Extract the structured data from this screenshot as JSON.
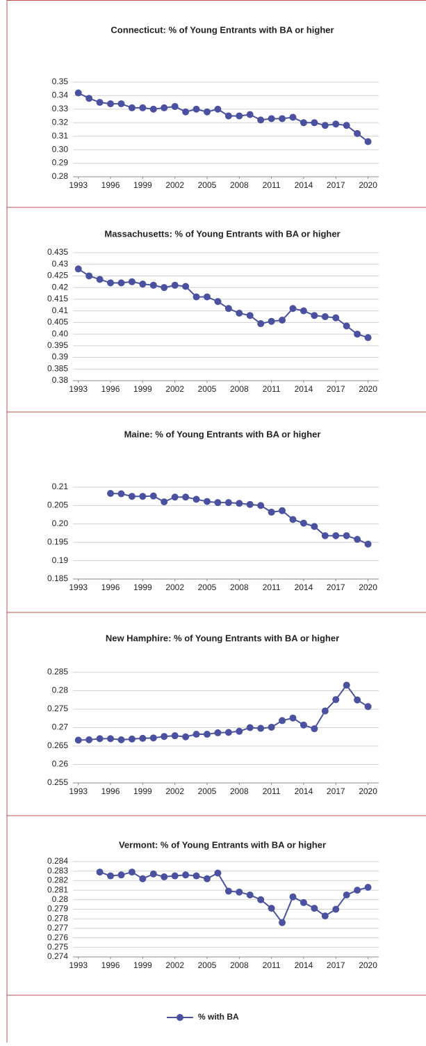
{
  "chart_data": [
    {
      "type": "line",
      "title": "Connecticut: % of Young Entrants with BA or higher",
      "color": "#4a52a0",
      "x": [
        1993,
        1994,
        1995,
        1996,
        1997,
        1998,
        1999,
        2000,
        2001,
        2002,
        2003,
        2004,
        2005,
        2006,
        2007,
        2008,
        2009,
        2010,
        2011,
        2012,
        2013,
        2014,
        2015,
        2016,
        2017,
        2018,
        2019,
        2020
      ],
      "values": [
        0.342,
        0.338,
        0.335,
        0.334,
        0.334,
        0.331,
        0.331,
        0.33,
        0.331,
        0.332,
        0.328,
        0.33,
        0.328,
        0.33,
        0.325,
        0.325,
        0.326,
        0.322,
        0.323,
        0.323,
        0.324,
        0.32,
        0.32,
        0.318,
        0.319,
        0.318,
        0.312,
        0.306
      ],
      "xlim": [
        1992.5,
        2021
      ],
      "xticks": [
        1993,
        1996,
        1999,
        2002,
        2005,
        2008,
        2011,
        2014,
        2017,
        2020
      ],
      "ylim": [
        0.28,
        0.35
      ],
      "yticks": [
        0.28,
        0.29,
        {
          "value": 0.3,
          "label": "0.30"
        },
        0.31,
        0.32,
        0.33,
        0.34,
        0.35
      ],
      "grid": true
    },
    {
      "type": "line",
      "title": "Massachusetts: % of Young Entrants with BA or higher",
      "color": "#4a52a0",
      "x": [
        1993,
        1994,
        1995,
        1996,
        1997,
        1998,
        1999,
        2000,
        2001,
        2002,
        2003,
        2004,
        2005,
        2006,
        2007,
        2008,
        2009,
        2010,
        2011,
        2012,
        2013,
        2014,
        2015,
        2016,
        2017,
        2018,
        2019,
        2020
      ],
      "values": [
        0.428,
        0.425,
        0.4235,
        0.422,
        0.422,
        0.4225,
        0.4215,
        0.421,
        0.42,
        0.421,
        0.4205,
        0.416,
        0.416,
        0.414,
        0.411,
        0.409,
        0.408,
        0.4045,
        0.4055,
        0.406,
        0.411,
        0.41,
        0.408,
        0.4075,
        0.407,
        0.4035,
        0.4,
        0.3985
      ],
      "xlim": [
        1992.5,
        2021
      ],
      "xticks": [
        1993,
        1996,
        1999,
        2002,
        2005,
        2008,
        2011,
        2014,
        2017,
        2020
      ],
      "ylim": [
        0.38,
        0.435
      ],
      "yticks": [
        0.38,
        0.385,
        0.39,
        0.395,
        {
          "value": 0.4,
          "label": "0.40"
        },
        0.405,
        0.41,
        0.415,
        0.42,
        0.425,
        0.43,
        0.435
      ],
      "grid": true
    },
    {
      "type": "line",
      "title": "Maine: % of Young Entrants with BA or higher",
      "color": "#4a52a0",
      "x": [
        1996,
        1997,
        1998,
        1999,
        2000,
        2001,
        2002,
        2003,
        2004,
        2005,
        2006,
        2007,
        2008,
        2009,
        2010,
        2011,
        2012,
        2013,
        2014,
        2015,
        2016,
        2017,
        2018,
        2019,
        2020
      ],
      "values": [
        0.2083,
        0.2082,
        0.2075,
        0.2075,
        0.2076,
        0.206,
        0.2073,
        0.2073,
        0.2067,
        0.2061,
        0.2058,
        0.2058,
        0.2056,
        0.2053,
        0.205,
        0.2032,
        0.2036,
        0.2012,
        0.2002,
        0.1993,
        0.1968,
        0.1968,
        0.1968,
        0.1958,
        0.1945
      ],
      "xlim": [
        1992.5,
        2021
      ],
      "xticks": [
        1993,
        1996,
        1999,
        2002,
        2005,
        2008,
        2011,
        2014,
        2017,
        2020
      ],
      "ylim": [
        0.185,
        0.21
      ],
      "yticks": [
        0.185,
        0.19,
        0.195,
        {
          "value": 0.2,
          "label": "0.20"
        },
        0.205,
        0.21
      ],
      "grid": true
    },
    {
      "type": "line",
      "title": "New Hamphire: % of Young Entrants with BA or higher",
      "color": "#4a52a0",
      "x": [
        1993,
        1994,
        1995,
        1996,
        1997,
        1998,
        1999,
        2000,
        2001,
        2002,
        2003,
        2004,
        2005,
        2006,
        2007,
        2008,
        2009,
        2010,
        2011,
        2012,
        2013,
        2014,
        2015,
        2016,
        2017,
        2018,
        2019,
        2020
      ],
      "values": [
        0.2666,
        0.2667,
        0.267,
        0.267,
        0.2667,
        0.2669,
        0.2671,
        0.2672,
        0.2676,
        0.2678,
        0.2675,
        0.2682,
        0.2682,
        0.2686,
        0.2687,
        0.269,
        0.27,
        0.2698,
        0.2701,
        0.2719,
        0.2726,
        0.2707,
        0.2697,
        0.2745,
        0.2776,
        0.2815,
        0.2775,
        0.2757
      ],
      "xlim": [
        1992.5,
        2021
      ],
      "xticks": [
        1993,
        1996,
        1999,
        2002,
        2005,
        2008,
        2011,
        2014,
        2017,
        2020
      ],
      "ylim": [
        0.255,
        0.285
      ],
      "yticks": [
        0.255,
        0.26,
        0.265,
        0.27,
        0.275,
        0.28,
        0.285
      ],
      "grid": true
    },
    {
      "type": "line",
      "title": "Vermont: % of Young Entrants with BA or higher",
      "color": "#4a52a0",
      "x": [
        1995,
        1996,
        1997,
        1998,
        1999,
        2000,
        2001,
        2002,
        2003,
        2004,
        2005,
        2006,
        2007,
        2008,
        2009,
        2010,
        2011,
        2012,
        2013,
        2014,
        2015,
        2016,
        2017,
        2018,
        2019,
        2020
      ],
      "values": [
        0.2829,
        0.2825,
        0.2826,
        0.2829,
        0.2822,
        0.2827,
        0.2824,
        0.2825,
        0.2826,
        0.2825,
        0.2822,
        0.2828,
        0.2809,
        0.2808,
        0.2805,
        0.28,
        0.2791,
        0.2776,
        0.2803,
        0.2797,
        0.2791,
        0.2783,
        0.279,
        0.2805,
        0.281,
        0.2813
      ],
      "xlim": [
        1992.5,
        2021
      ],
      "xticks": [
        1993,
        1996,
        1999,
        2002,
        2005,
        2008,
        2011,
        2014,
        2017,
        2020
      ],
      "ylim": [
        0.274,
        0.284
      ],
      "yticks": [
        0.274,
        0.275,
        0.276,
        0.277,
        0.278,
        0.279,
        0.28,
        0.281,
        0.282,
        0.283,
        0.284
      ],
      "grid": true
    }
  ],
  "legend": {
    "name": "% with BA",
    "color": "#4a52a0"
  }
}
